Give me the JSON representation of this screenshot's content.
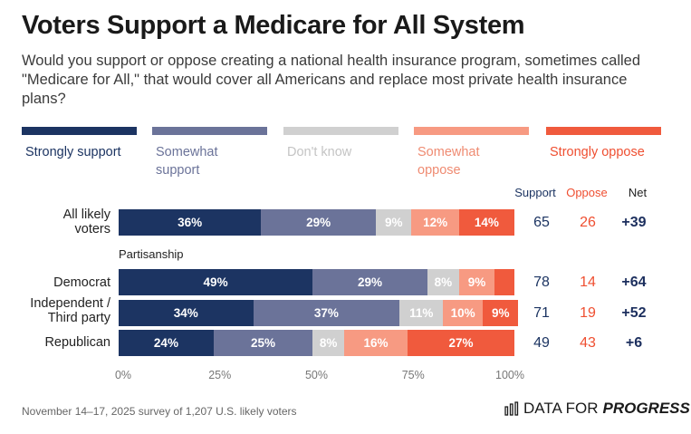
{
  "title": "Voters Support a Medicare for All System",
  "subtitle": "Would you support or oppose creating a national health insurance program, sometimes called \"Medicare for All,\" that would cover all Americans and replace most private health insurance plans?",
  "legend": [
    {
      "label": "Strongly support",
      "color": "#1c3462",
      "text_color": "#1c3462"
    },
    {
      "label": "Somewhat support",
      "color": "#6b7399",
      "text_color": "#6b7399"
    },
    {
      "label": "Don't know",
      "color": "#d0d0d0",
      "text_color": "#c4c4c4"
    },
    {
      "label": "Somewhat oppose",
      "color": "#f79a82",
      "text_color": "#ef8b72"
    },
    {
      "label": "Strongly oppose",
      "color": "#f05a3d",
      "text_color": "#ef4f31"
    }
  ],
  "columns": {
    "support": "Support",
    "oppose": "Oppose",
    "net": "Net"
  },
  "section_label": "Partisanship",
  "x_ticks": [
    "0%",
    "25%",
    "50%",
    "75%",
    "100%"
  ],
  "chart_data": {
    "type": "bar",
    "orientation": "horizontal",
    "stacked": true,
    "title": "Voters Support a Medicare for All System",
    "xlim": [
      0,
      100
    ],
    "categories": [
      "All likely voters",
      "Democrat",
      "Independent / Third party",
      "Republican"
    ],
    "series": [
      {
        "name": "Strongly support",
        "values": [
          36,
          49,
          34,
          24
        ],
        "labels": [
          "36%",
          "49%",
          "34%",
          "24%"
        ]
      },
      {
        "name": "Somewhat support",
        "values": [
          29,
          29,
          37,
          25
        ],
        "labels": [
          "29%",
          "29%",
          "37%",
          "25%"
        ]
      },
      {
        "name": "Don't know",
        "values": [
          9,
          8,
          11,
          8
        ],
        "labels": [
          "9%",
          "8%",
          "11%",
          "8%"
        ]
      },
      {
        "name": "Somewhat oppose",
        "values": [
          12,
          9,
          10,
          16
        ],
        "labels": [
          "12%",
          "9%",
          "10%",
          "16%"
        ]
      },
      {
        "name": "Strongly oppose",
        "values": [
          14,
          5,
          9,
          27
        ],
        "labels": [
          "14%",
          "",
          "9%",
          "27%"
        ]
      }
    ],
    "support": [
      65,
      78,
      71,
      49
    ],
    "oppose": [
      26,
      14,
      19,
      43
    ],
    "net": [
      "+39",
      "+64",
      "+52",
      "+6"
    ]
  },
  "footer": {
    "note": "November 14–17, 2025 survey of 1,207 U.S. likely voters",
    "brand_regular": "DATA FOR",
    "brand_bold": "PROGRESS"
  }
}
